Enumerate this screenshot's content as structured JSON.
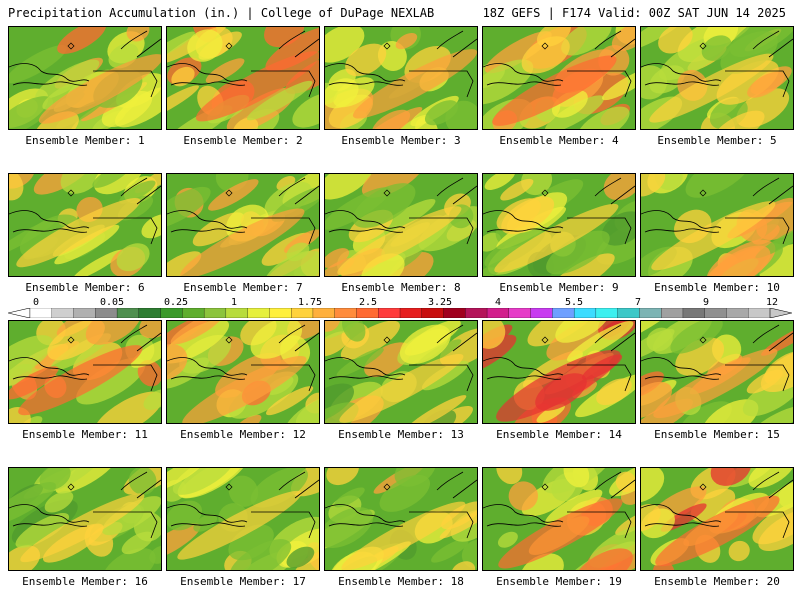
{
  "header": {
    "left": "Precipitation Accumulation (in.) | College of DuPage NEXLAB",
    "right": "18Z GEFS | F174 Valid: 00Z SAT JUN 14 2025"
  },
  "colorbar": {
    "labels": [
      "0",
      "0.05",
      "0.25",
      "1",
      "1.75",
      "2.5",
      "3.25",
      "4",
      "5.5",
      "7",
      "9",
      "12"
    ],
    "colors": [
      "#ffffff",
      "#cfcfcf",
      "#b0b0b0",
      "#8c8c8c",
      "#4f8f4f",
      "#2e7d32",
      "#3a9a2a",
      "#5fae2e",
      "#8cc43c",
      "#b8dc3c",
      "#e6f03c",
      "#fff03c",
      "#ffd23c",
      "#ffb03c",
      "#ff8c3c",
      "#ff6a32",
      "#ff3c3c",
      "#e61e1e",
      "#c80f0f",
      "#a0001e",
      "#b4145a",
      "#d21e8c",
      "#e63cc8",
      "#c83cf0",
      "#6ea0ff",
      "#3cdcff",
      "#3cf0f0",
      "#3cc8c8",
      "#7cb4b4",
      "#a0a0a0",
      "#787878",
      "#909090",
      "#a8a8a8",
      "#c8c8c8"
    ]
  },
  "members": [
    {
      "label": "Ensemble Member: 1",
      "intensity": 0.5
    },
    {
      "label": "Ensemble Member: 2",
      "intensity": 0.6
    },
    {
      "label": "Ensemble Member: 3",
      "intensity": 0.45
    },
    {
      "label": "Ensemble Member: 4",
      "intensity": 0.65
    },
    {
      "label": "Ensemble Member: 5",
      "intensity": 0.35
    },
    {
      "label": "Ensemble Member: 6",
      "intensity": 0.4
    },
    {
      "label": "Ensemble Member: 7",
      "intensity": 0.5
    },
    {
      "label": "Ensemble Member: 8",
      "intensity": 0.35
    },
    {
      "label": "Ensemble Member: 9",
      "intensity": 0.3
    },
    {
      "label": "Ensemble Member: 10",
      "intensity": 0.4
    },
    {
      "label": "Ensemble Member: 11",
      "intensity": 0.6
    },
    {
      "label": "Ensemble Member: 12",
      "intensity": 0.55
    },
    {
      "label": "Ensemble Member: 13",
      "intensity": 0.3
    },
    {
      "label": "Ensemble Member: 14",
      "intensity": 0.9
    },
    {
      "label": "Ensemble Member: 15",
      "intensity": 0.5
    },
    {
      "label": "Ensemble Member: 16",
      "intensity": 0.3
    },
    {
      "label": "Ensemble Member: 17",
      "intensity": 0.3
    },
    {
      "label": "Ensemble Member: 18",
      "intensity": 0.3
    },
    {
      "label": "Ensemble Member: 19",
      "intensity": 0.6
    },
    {
      "label": "Ensemble Member: 20",
      "intensity": 0.7
    }
  ]
}
